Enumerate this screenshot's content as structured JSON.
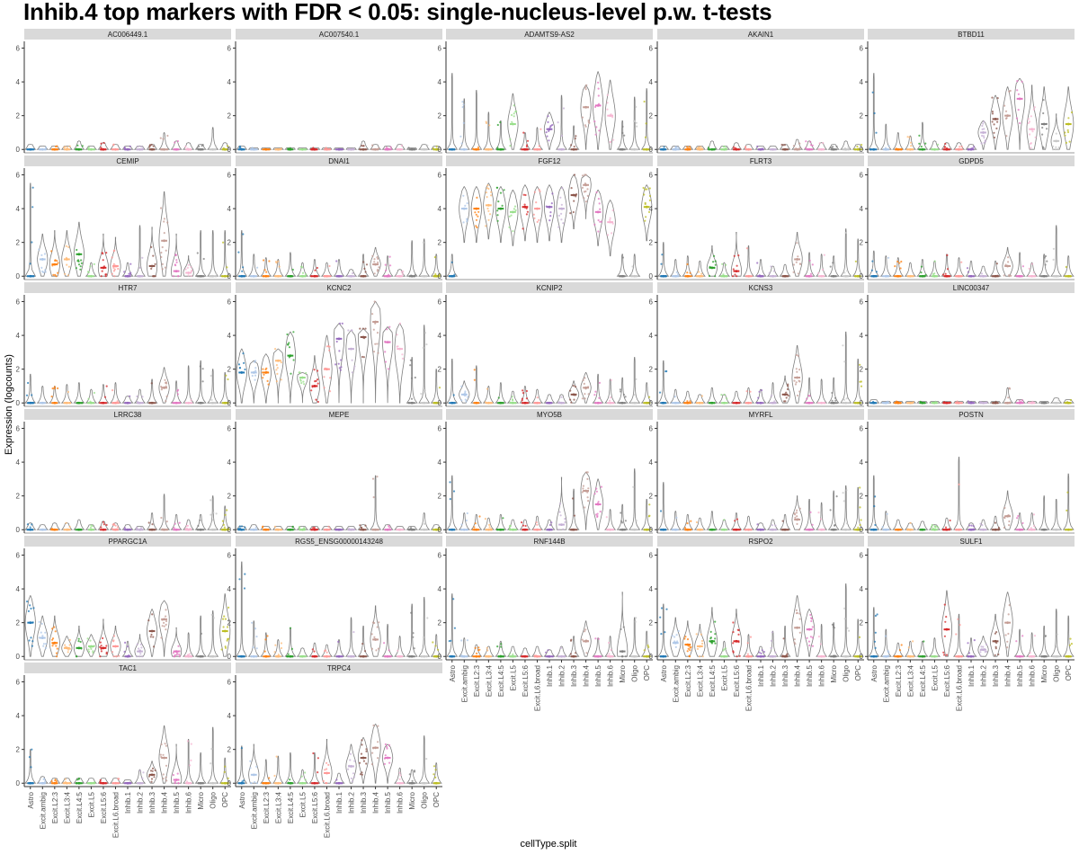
{
  "title": "Inhib.4 top markers with FDR < 0.05: single-nucleus-level p.w. t-tests",
  "chart_data": {
    "type": "violin",
    "xlabel": "cellType.split",
    "ylabel": "Expression (logcounts)",
    "ylim": [
      -0.2,
      6.4
    ],
    "yticks": [
      0,
      2,
      4,
      6
    ],
    "ncol": 5,
    "categories": [
      "Astro",
      "Excit.ambig",
      "Excit.L2:3",
      "Excit.L3:4",
      "Excit.L4:5",
      "Excit.L5",
      "Excit.L5:6",
      "Excit.L6.broad",
      "Inhib.1",
      "Inhib.2",
      "Inhib.3",
      "Inhib.4",
      "Inhib.5",
      "Inhib.6",
      "Micro",
      "Oligo",
      "OPC"
    ],
    "colors": [
      "#1f77b4",
      "#aec7e8",
      "#ff7f0e",
      "#ffbb78",
      "#2ca02c",
      "#98df8a",
      "#d62728",
      "#ff9896",
      "#9467bd",
      "#c5b0d5",
      "#8c564b",
      "#c49c94",
      "#e377c2",
      "#f7b6d2",
      "#7f7f7f",
      "#c7c7c7",
      "#bcbd22"
    ],
    "panels": [
      {
        "gene": "AC006449.1",
        "median": [
          0,
          0,
          0,
          0,
          0,
          0,
          0,
          0,
          0,
          0,
          0,
          0,
          0,
          0,
          0,
          0,
          0
        ],
        "max": [
          0.3,
          0.2,
          0.2,
          0.2,
          0.5,
          0.2,
          0.4,
          0.3,
          0.2,
          0.2,
          0.3,
          1.0,
          0.5,
          0.4,
          0.3,
          1.3,
          0.4
        ]
      },
      {
        "gene": "AC007540.1",
        "median": [
          0,
          0,
          0,
          0,
          0,
          0,
          0,
          0,
          0,
          0,
          0,
          0,
          0,
          0,
          0,
          0,
          0
        ],
        "max": [
          0.2,
          0.1,
          0.1,
          0.1,
          0.1,
          0.1,
          0.1,
          0.1,
          0.1,
          0.1,
          0.5,
          0.3,
          0.2,
          0.3,
          0.1,
          0.3,
          0.2
        ]
      },
      {
        "gene": "ADAMTS9-AS2",
        "median": [
          0,
          0,
          0,
          0,
          0,
          1.5,
          0,
          0,
          1.2,
          0,
          0,
          2.5,
          2.6,
          2.0,
          0,
          0,
          0
        ],
        "max": [
          4.5,
          3.0,
          3.5,
          2.2,
          1.7,
          3.3,
          1.0,
          1.3,
          2.2,
          3.2,
          1.4,
          3.8,
          4.6,
          4.1,
          1.7,
          3.1,
          3.6
        ]
      },
      {
        "gene": "AKAIN1",
        "median": [
          0,
          0,
          0,
          0,
          0,
          0,
          0,
          0,
          0,
          0,
          0,
          0,
          0,
          0,
          0,
          0,
          0
        ],
        "max": [
          0.2,
          0.2,
          0.2,
          0.2,
          0.5,
          0.2,
          0.4,
          0.3,
          0.2,
          0.2,
          0.3,
          0.6,
          0.5,
          0.4,
          0.3,
          0.5,
          0.3
        ]
      },
      {
        "gene": "BTBD11",
        "median": [
          0,
          0,
          0,
          0,
          0,
          0,
          0,
          0,
          0,
          1.0,
          1.8,
          2.0,
          3.0,
          1.2,
          1.5,
          0.5,
          1.5
        ],
        "max": [
          4.5,
          1.5,
          1.0,
          0.8,
          1.6,
          0.5,
          0.4,
          0.4,
          0.3,
          1.7,
          3.2,
          3.7,
          4.2,
          3.8,
          3.7,
          2.1,
          3.7
        ]
      },
      {
        "gene": "CEMIP",
        "median": [
          0,
          1.0,
          0.7,
          1.0,
          1.3,
          0,
          0.5,
          0.6,
          0,
          0,
          0.6,
          2.1,
          0.3,
          0.2,
          0,
          0,
          0
        ],
        "max": [
          5.5,
          2.5,
          2.7,
          2.7,
          3.2,
          0.8,
          2.5,
          2.3,
          0.8,
          3.0,
          2.9,
          5.0,
          2.5,
          1.2,
          2.7,
          2.7,
          2.7
        ]
      },
      {
        "gene": "DNAI1",
        "median": [
          0,
          0,
          0,
          0,
          0,
          0,
          0,
          0,
          0,
          0,
          0,
          0.7,
          0,
          0,
          0,
          0,
          0
        ],
        "max": [
          2.7,
          1.3,
          1.1,
          1.0,
          1.4,
          0.8,
          1.0,
          0.8,
          1.0,
          0.4,
          1.3,
          1.7,
          1.2,
          0.4,
          2.1,
          2.2,
          1.3
        ]
      },
      {
        "gene": "FGF12",
        "median": [
          0,
          4.0,
          4.0,
          4.2,
          4.0,
          3.8,
          4.1,
          4.0,
          4.1,
          4.0,
          4.8,
          5.4,
          3.8,
          3.2,
          0,
          0,
          4.1
        ]
      },
      {
        "gene": "FLRT3",
        "median": [
          0,
          0,
          0,
          0,
          0.5,
          0,
          0.3,
          0,
          0,
          0,
          0,
          1.0,
          0,
          0,
          0,
          0,
          0
        ],
        "max": [
          2.0,
          1.0,
          1.2,
          0.9,
          1.8,
          0.8,
          2.6,
          1.8,
          1.0,
          0.6,
          0.7,
          2.6,
          1.4,
          1.3,
          1.2,
          2.8,
          2.2
        ]
      },
      {
        "gene": "GDPD5",
        "median": [
          0,
          0,
          0,
          0,
          0,
          0,
          0,
          0,
          0,
          0,
          0,
          0.6,
          0,
          0,
          0,
          0,
          0
        ],
        "max": [
          1.5,
          1.2,
          1.1,
          0.8,
          1.0,
          0.9,
          1.3,
          1.1,
          0.9,
          0.6,
          0.9,
          1.7,
          1.4,
          0.8,
          1.3,
          3.0,
          1.2
        ]
      },
      {
        "gene": "HTR7",
        "median": [
          0,
          0,
          0,
          0,
          0,
          0,
          0,
          0,
          0,
          0,
          0,
          0.9,
          0,
          0,
          0,
          0,
          0
        ],
        "max": [
          1.7,
          1.0,
          1.0,
          1.1,
          1.2,
          0.8,
          1.1,
          1.2,
          0.4,
          0.8,
          1.4,
          2.1,
          1.3,
          2.2,
          2.5,
          2.0,
          1.8
        ]
      },
      {
        "gene": "KCNC2",
        "median": [
          1.8,
          1.8,
          1.8,
          2.5,
          2.8,
          1.5,
          1.0,
          2.0,
          3.8,
          3.2,
          3.9,
          4.8,
          3.6,
          3.2,
          0,
          0,
          0
        ],
        "max": [
          3.2,
          2.5,
          2.9,
          3.2,
          4.2,
          1.8,
          2.8,
          4.0,
          4.7,
          4.3,
          4.4,
          6.0,
          4.5,
          4.7,
          2.7,
          4.6,
          2.0
        ]
      },
      {
        "gene": "KCNIP2",
        "median": [
          0,
          0.5,
          0,
          0,
          0,
          0,
          0,
          0,
          0,
          0,
          0.5,
          0.9,
          0,
          0,
          0,
          0,
          0
        ],
        "max": [
          2.6,
          1.3,
          2.2,
          1.0,
          1.2,
          0.7,
          1.0,
          0.8,
          0.5,
          0.5,
          1.3,
          1.8,
          1.7,
          1.4,
          1.5,
          2.7,
          1.2
        ]
      },
      {
        "gene": "KCNS3",
        "median": [
          0,
          0,
          0,
          0,
          0,
          0,
          0,
          0,
          0,
          0,
          0.5,
          1.5,
          0,
          0,
          0,
          0,
          0
        ],
        "max": [
          2.5,
          0.8,
          0.7,
          0.5,
          0.9,
          0.5,
          0.7,
          0.9,
          0.8,
          1.2,
          1.6,
          3.4,
          1.5,
          1.4,
          1.5,
          4.2,
          2.6
        ]
      },
      {
        "gene": "LINC00347",
        "median": [
          0,
          0,
          0,
          0,
          0,
          0,
          0,
          0,
          0,
          0,
          0,
          0,
          0,
          0,
          0,
          0,
          0
        ],
        "max": [
          0.2,
          0.1,
          0.1,
          0.1,
          0.1,
          0.1,
          0.1,
          0.1,
          0.1,
          0.1,
          0.1,
          0.9,
          0.2,
          0.1,
          0.1,
          0.3,
          0.2
        ]
      },
      {
        "gene": "LRRC38",
        "median": [
          0,
          0,
          0,
          0,
          0,
          0,
          0,
          0,
          0,
          0,
          0,
          0,
          0,
          0,
          0,
          0,
          0
        ],
        "max": [
          0.4,
          0.3,
          0.4,
          0.4,
          0.6,
          0.3,
          0.5,
          0.4,
          0.3,
          0.2,
          1.0,
          2.1,
          0.9,
          0.6,
          0.9,
          2.0,
          1.4
        ]
      },
      {
        "gene": "MEPE",
        "median": [
          0,
          0,
          0,
          0,
          0,
          0,
          0,
          0,
          0,
          0,
          0,
          0,
          0,
          0,
          0,
          0,
          0
        ],
        "max": [
          0.2,
          0.3,
          0.2,
          0.2,
          0.2,
          0.2,
          0.2,
          0.2,
          0.2,
          0.2,
          0.3,
          3.2,
          0.3,
          0.2,
          0.2,
          1.0,
          0.3
        ]
      },
      {
        "gene": "MYO5B",
        "median": [
          0,
          0,
          0,
          0,
          0,
          0,
          0,
          0,
          0,
          0.3,
          0,
          2.3,
          1.5,
          0,
          0,
          0,
          0
        ],
        "max": [
          3.2,
          1.0,
          0.9,
          0.7,
          0.9,
          0.6,
          0.6,
          0.8,
          0.6,
          3.1,
          2.4,
          3.4,
          3.0,
          1.2,
          1.5,
          3.6,
          1.8
        ]
      },
      {
        "gene": "MYRFL",
        "median": [
          0,
          0,
          0,
          0,
          0,
          0,
          0,
          0,
          0,
          0,
          0,
          0.6,
          0,
          0,
          0,
          0,
          0
        ],
        "max": [
          2.8,
          1.1,
          0.9,
          0.7,
          1.1,
          0.6,
          1.0,
          0.8,
          0.4,
          0.6,
          0.9,
          2.0,
          1.8,
          1.6,
          2.3,
          2.6,
          2.5
        ]
      },
      {
        "gene": "POSTN",
        "median": [
          0,
          0,
          0,
          0,
          0,
          0,
          0,
          0,
          0,
          0,
          0,
          0.8,
          0,
          0,
          0,
          0,
          0
        ],
        "max": [
          3.2,
          1.1,
          0.6,
          0.4,
          0.5,
          0.3,
          0.7,
          4.3,
          0.4,
          0.6,
          0.8,
          2.3,
          1.0,
          1.0,
          2.0,
          1.8,
          3.3
        ]
      },
      {
        "gene": "PPARGC1A",
        "median": [
          2.0,
          1.1,
          0.8,
          0.5,
          0.5,
          0.6,
          0.5,
          0.6,
          0,
          0.3,
          1.5,
          2.2,
          0.3,
          0,
          0,
          0,
          1.5
        ],
        "max": [
          3.6,
          2.4,
          2.4,
          1.2,
          1.8,
          1.3,
          2.2,
          1.8,
          0.9,
          1.3,
          2.8,
          3.3,
          1.7,
          1.4,
          2.4,
          2.7,
          3.7
        ]
      },
      {
        "gene": "RGS5_ENSG00000143248",
        "median": [
          0,
          0,
          0,
          0,
          0,
          0,
          0,
          0,
          0,
          0,
          0,
          1.0,
          0,
          0,
          0,
          0,
          0
        ],
        "max": [
          5.6,
          2.1,
          1.4,
          1.0,
          1.7,
          0.5,
          0.8,
          0.7,
          1.0,
          2.3,
          1.8,
          3.0,
          1.9,
          1.2,
          3.1,
          3.5,
          1.3
        ]
      },
      {
        "gene": "RNF144B",
        "median": [
          0,
          0,
          0,
          0,
          0,
          0,
          0,
          0,
          0,
          0,
          0,
          0.9,
          0,
          0,
          0.3,
          0,
          0
        ],
        "max": [
          3.7,
          1.1,
          0.7,
          0.6,
          0.9,
          0.6,
          0.5,
          0.6,
          0.4,
          0.6,
          1.2,
          2.1,
          1.1,
          1.2,
          3.8,
          2.3,
          1.5
        ]
      },
      {
        "gene": "RSPO2",
        "median": [
          0,
          0.8,
          0.7,
          0.6,
          0.9,
          0,
          0.9,
          0,
          0,
          0,
          0,
          1.7,
          1.6,
          0,
          0,
          0,
          0
        ],
        "max": [
          3.1,
          2.3,
          2.1,
          1.9,
          2.9,
          0.9,
          2.8,
          1.3,
          0.6,
          1.5,
          1.8,
          3.6,
          2.8,
          1.9,
          2.0,
          4.3,
          2.2
        ]
      },
      {
        "gene": "SULF1",
        "median": [
          0,
          0,
          0,
          0,
          0,
          0,
          1.6,
          0,
          0,
          0.4,
          0.9,
          2.0,
          0,
          0,
          0,
          0,
          0
        ],
        "max": [
          2.9,
          1.6,
          0.8,
          0.9,
          0.9,
          1.1,
          3.9,
          2.5,
          1.1,
          1.2,
          2.5,
          3.8,
          1.6,
          1.4,
          1.8,
          2.8,
          2.4
        ]
      },
      {
        "gene": "TAC1",
        "median": [
          0,
          0,
          0,
          0,
          0,
          0,
          0,
          0,
          0,
          0,
          0.5,
          1.5,
          0.2,
          0,
          0,
          0,
          0
        ],
        "max": [
          2.0,
          0.4,
          0.3,
          0.3,
          0.3,
          0.3,
          0.3,
          0.3,
          0.2,
          0.8,
          1.3,
          3.4,
          2.3,
          2.6,
          1.8,
          3.3,
          1.5
        ]
      },
      {
        "gene": "TRPC4",
        "median": [
          0,
          0.5,
          0,
          0,
          0,
          0,
          0,
          0.6,
          0,
          1.0,
          1.5,
          2.1,
          1.5,
          0,
          0,
          0,
          0
        ],
        "max": [
          2.2,
          2.3,
          1.4,
          1.6,
          1.8,
          0.8,
          1.8,
          2.6,
          0.6,
          2.3,
          2.7,
          3.5,
          2.3,
          0.9,
          0.8,
          2.8,
          1.2
        ]
      }
    ]
  }
}
